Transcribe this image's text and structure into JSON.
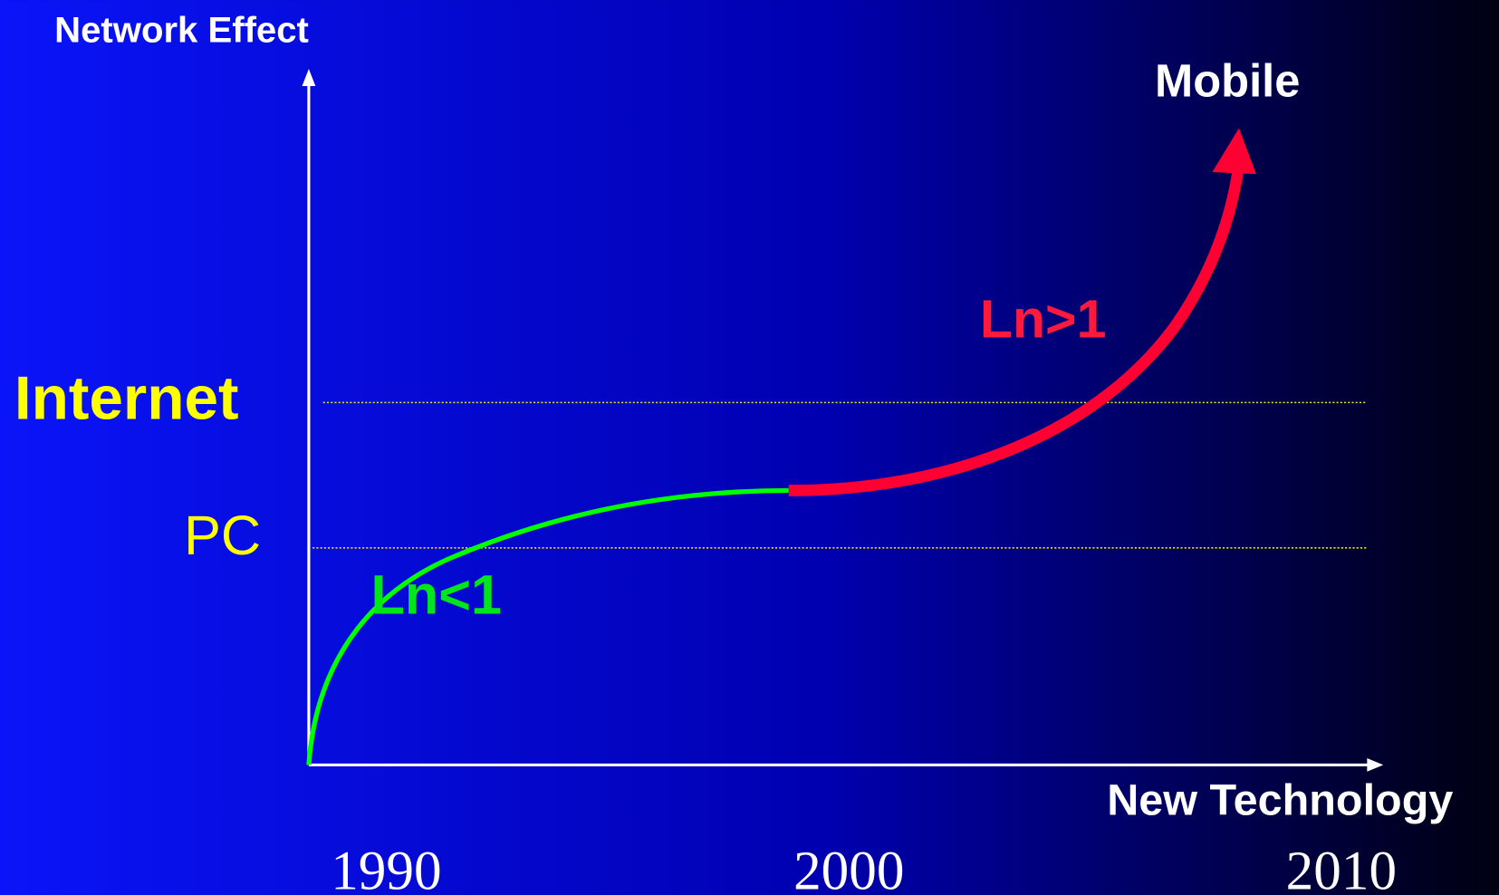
{
  "axis_labels": {
    "y": "Network Effect",
    "x": "New Technology"
  },
  "levels": [
    "Internet",
    "PC"
  ],
  "curves": [
    {
      "label": "Ln<1"
    },
    {
      "label": "Ln>1"
    }
  ],
  "target": "Mobile",
  "years": [
    "1990",
    "2000",
    "2010"
  ]
}
